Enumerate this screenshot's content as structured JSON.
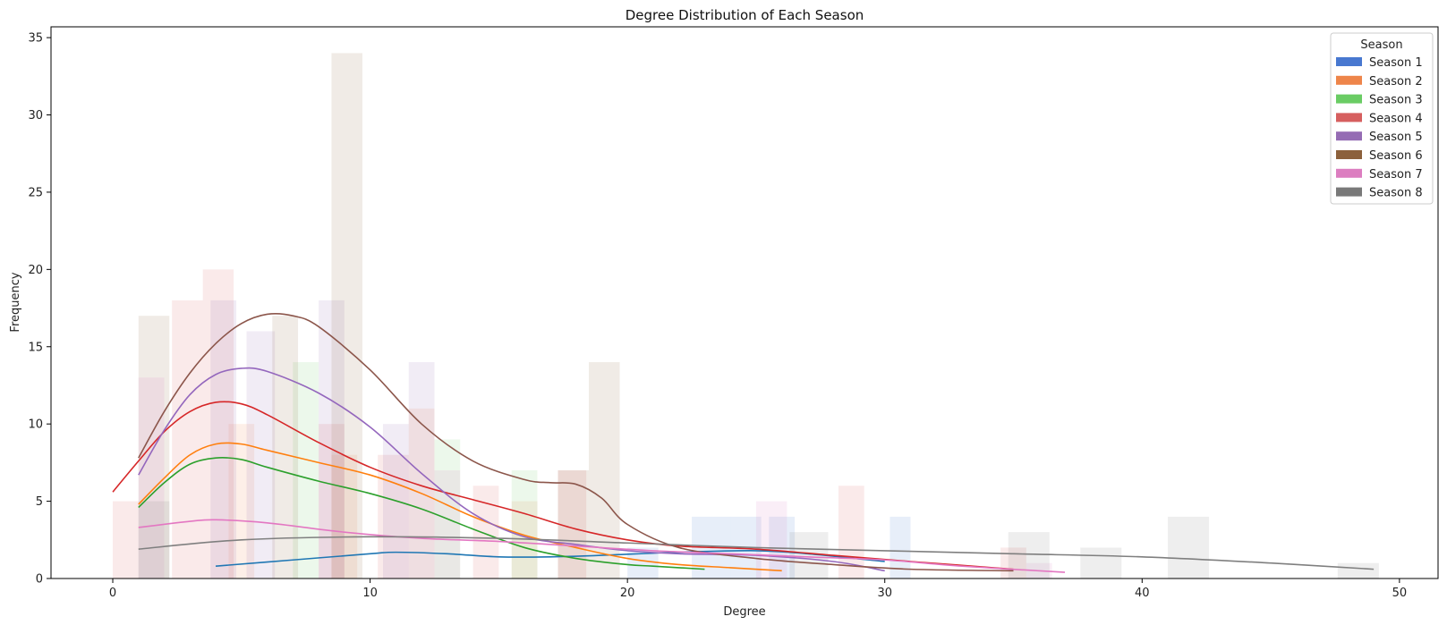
{
  "chart_data": {
    "type": "histogram+kde",
    "title": "Degree Distribution of Each Season",
    "xlabel": "Degree",
    "ylabel": "Frequency",
    "xlim": [
      -2.4,
      51.5
    ],
    "ylim": [
      0,
      35.7
    ],
    "x_ticks": [
      0,
      10,
      20,
      30,
      40,
      50
    ],
    "y_ticks": [
      0,
      5,
      10,
      15,
      20,
      25,
      30,
      35
    ],
    "grid": false,
    "legend": {
      "title": "Season",
      "placement": "top-right",
      "entries": [
        "Season 1",
        "Season 2",
        "Season 3",
        "Season 4",
        "Season 5",
        "Season 6",
        "Season 7",
        "Season 8"
      ]
    },
    "series": [
      {
        "name": "Season 1",
        "color": "#1f77b4",
        "hist_color": "#4878d0",
        "hist": [
          [
            20,
            21.2,
            2
          ],
          [
            22.5,
            24,
            4
          ],
          [
            24,
            25.2,
            4
          ],
          [
            25.5,
            26.5,
            4
          ],
          [
            30.2,
            31,
            4
          ]
        ],
        "kde": [
          [
            4,
            0.8
          ],
          [
            7,
            1.2
          ],
          [
            10,
            1.6
          ],
          [
            11,
            1.7
          ],
          [
            13,
            1.6
          ],
          [
            15,
            1.4
          ],
          [
            17,
            1.4
          ],
          [
            19,
            1.5
          ],
          [
            22,
            1.7
          ],
          [
            25,
            1.8
          ],
          [
            27,
            1.6
          ],
          [
            30,
            1.1
          ]
        ]
      },
      {
        "name": "Season 2",
        "color": "#ff7f0e",
        "hist_color": "#ee854a",
        "hist": [
          [
            4.5,
            5.5,
            10
          ],
          [
            8.5,
            9.5,
            8
          ],
          [
            11.5,
            12.5,
            11
          ],
          [
            15.5,
            16.5,
            5
          ]
        ],
        "kde": [
          [
            1,
            4.8
          ],
          [
            2,
            6.5
          ],
          [
            3,
            8
          ],
          [
            4,
            8.7
          ],
          [
            5,
            8.7
          ],
          [
            6,
            8.3
          ],
          [
            8,
            7.5
          ],
          [
            10,
            6.7
          ],
          [
            12,
            5.5
          ],
          [
            14,
            4
          ],
          [
            16,
            2.8
          ],
          [
            18,
            2
          ],
          [
            20,
            1.3
          ],
          [
            22,
            0.9
          ],
          [
            24,
            0.7
          ],
          [
            26,
            0.5
          ]
        ]
      },
      {
        "name": "Season 3",
        "color": "#2ca02c",
        "hist_color": "#6acc64",
        "hist": [
          [
            7,
            8,
            14
          ],
          [
            12.5,
            13.5,
            9
          ],
          [
            15.5,
            16.5,
            7
          ]
        ],
        "kde": [
          [
            1,
            4.6
          ],
          [
            2,
            6.2
          ],
          [
            3,
            7.4
          ],
          [
            4,
            7.8
          ],
          [
            5,
            7.7
          ],
          [
            6,
            7.2
          ],
          [
            8,
            6.3
          ],
          [
            10,
            5.5
          ],
          [
            12,
            4.5
          ],
          [
            14,
            3.2
          ],
          [
            16,
            2
          ],
          [
            18,
            1.3
          ],
          [
            20,
            0.9
          ],
          [
            21,
            0.8
          ],
          [
            23,
            0.6
          ]
        ]
      },
      {
        "name": "Season 4",
        "color": "#d62728",
        "hist_color": "#d65f5f",
        "hist": [
          [
            0,
            1,
            5
          ],
          [
            2.3,
            3.5,
            18
          ],
          [
            3.5,
            4.7,
            20
          ],
          [
            8,
            9,
            10
          ],
          [
            10.3,
            11.5,
            8
          ],
          [
            14,
            15,
            6
          ],
          [
            17.3,
            18.4,
            7
          ],
          [
            28.2,
            29.2,
            6
          ],
          [
            34.5,
            35.5,
            2
          ]
        ],
        "kde": [
          [
            0,
            5.6
          ],
          [
            1,
            7.6
          ],
          [
            2,
            9.5
          ],
          [
            3,
            10.8
          ],
          [
            4,
            11.4
          ],
          [
            5,
            11.3
          ],
          [
            6,
            10.6
          ],
          [
            8,
            8.8
          ],
          [
            10,
            7.2
          ],
          [
            12,
            6
          ],
          [
            14,
            5.1
          ],
          [
            16,
            4.2
          ],
          [
            18,
            3.2
          ],
          [
            20,
            2.5
          ],
          [
            22,
            2.1
          ],
          [
            25,
            1.9
          ],
          [
            28,
            1.5
          ],
          [
            31,
            1.1
          ],
          [
            35,
            0.6
          ]
        ]
      },
      {
        "name": "Season 5",
        "color": "#9467bd",
        "hist_color": "#956cb4",
        "hist": [
          [
            3.8,
            4.8,
            18
          ],
          [
            5.2,
            6.3,
            16
          ],
          [
            8,
            9,
            18
          ],
          [
            10.5,
            11.5,
            10
          ],
          [
            11.5,
            12.5,
            14
          ]
        ],
        "kde": [
          [
            1,
            6.7
          ],
          [
            2,
            9.6
          ],
          [
            3,
            11.9
          ],
          [
            4,
            13.2
          ],
          [
            5,
            13.6
          ],
          [
            6,
            13.4
          ],
          [
            8,
            12
          ],
          [
            10,
            9.8
          ],
          [
            12,
            6.8
          ],
          [
            14,
            4.2
          ],
          [
            16,
            2.7
          ],
          [
            18,
            2.2
          ],
          [
            20,
            1.8
          ],
          [
            22,
            1.6
          ],
          [
            25,
            1.5
          ],
          [
            28,
            1.1
          ],
          [
            30,
            0.5
          ]
        ]
      },
      {
        "name": "Season 6",
        "color": "#8c564b",
        "hist_color": "#8c613c",
        "hist": [
          [
            1,
            2.2,
            17
          ],
          [
            6.2,
            7.2,
            17
          ],
          [
            8.5,
            9.7,
            34
          ],
          [
            18.5,
            19.7,
            14
          ],
          [
            17.3,
            18.5,
            7
          ]
        ],
        "kde": [
          [
            1,
            7.8
          ],
          [
            2,
            10.8
          ],
          [
            3,
            13.3
          ],
          [
            4,
            15.2
          ],
          [
            5,
            16.5
          ],
          [
            6,
            17.1
          ],
          [
            7,
            17
          ],
          [
            8,
            16.3
          ],
          [
            10,
            13.5
          ],
          [
            12,
            10
          ],
          [
            14,
            7.6
          ],
          [
            16,
            6.4
          ],
          [
            17,
            6.2
          ],
          [
            18,
            6.1
          ],
          [
            19,
            5.2
          ],
          [
            20,
            3.5
          ],
          [
            22,
            2
          ],
          [
            25,
            1.3
          ],
          [
            28,
            0.9
          ],
          [
            31,
            0.6
          ],
          [
            35,
            0.5
          ]
        ]
      },
      {
        "name": "Season 7",
        "color": "#e377c2",
        "hist_color": "#dc7ec0",
        "hist": [
          [
            1,
            2,
            13
          ],
          [
            12.5,
            13.5,
            7
          ],
          [
            25,
            26.2,
            5
          ],
          [
            35.5,
            36.5,
            1
          ]
        ],
        "kde": [
          [
            1,
            3.3
          ],
          [
            3,
            3.7
          ],
          [
            4,
            3.8
          ],
          [
            6,
            3.6
          ],
          [
            9,
            3
          ],
          [
            12,
            2.6
          ],
          [
            15,
            2.4
          ],
          [
            18,
            2.1
          ],
          [
            21,
            1.8
          ],
          [
            24,
            1.6
          ],
          [
            27,
            1.4
          ],
          [
            30,
            1.2
          ],
          [
            33,
            0.8
          ],
          [
            37,
            0.4
          ]
        ]
      },
      {
        "name": "Season 8",
        "color": "#7f7f7f",
        "hist_color": "#797979",
        "hist": [
          [
            1,
            2.2,
            5
          ],
          [
            26.3,
            27.8,
            3
          ],
          [
            34.8,
            36.4,
            3
          ],
          [
            37.6,
            39.2,
            2
          ],
          [
            41,
            42.6,
            4
          ],
          [
            47.6,
            49.2,
            1
          ]
        ],
        "kde": [
          [
            1,
            1.9
          ],
          [
            5,
            2.5
          ],
          [
            10,
            2.7
          ],
          [
            15,
            2.6
          ],
          [
            20,
            2.3
          ],
          [
            25,
            2
          ],
          [
            30,
            1.8
          ],
          [
            35,
            1.6
          ],
          [
            40,
            1.4
          ],
          [
            45,
            1
          ],
          [
            49,
            0.6
          ]
        ]
      }
    ]
  }
}
